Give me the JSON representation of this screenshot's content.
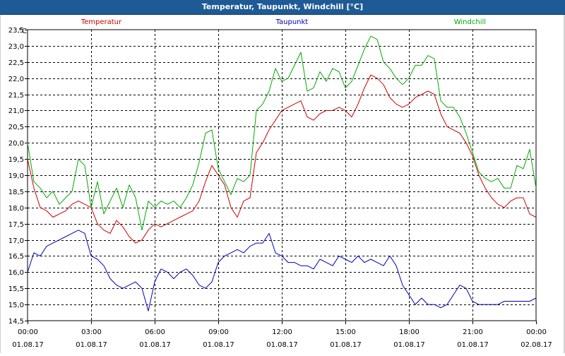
{
  "window": {
    "title": "Temperatur, Taupunkt, Windchill [°C]"
  },
  "chart_data": {
    "type": "line",
    "title": "Temperatur, Taupunkt, Windchill [°C]",
    "ylabel": "°C",
    "ylim": [
      14.5,
      23.5
    ],
    "yticks": [
      14.5,
      15.0,
      15.5,
      16.0,
      16.5,
      17.0,
      17.5,
      18.0,
      18.5,
      19.0,
      19.5,
      20.0,
      20.5,
      21.0,
      21.5,
      22.0,
      22.5,
      23.0,
      23.5
    ],
    "ytick_labels": [
      "14,5",
      "15,0",
      "15,5",
      "16,0",
      "16,5",
      "17,0",
      "17,5",
      "18,0",
      "18,5",
      "19,0",
      "19,5",
      "20,0",
      "20,5",
      "21,0",
      "21,5",
      "22,0",
      "22,5",
      "23,0",
      "23,5"
    ],
    "xlim": [
      0,
      24
    ],
    "xticks": [
      {
        "hour": 0,
        "time": "00:00",
        "date": "01.08.17"
      },
      {
        "hour": 3,
        "time": "03:00",
        "date": "01.08.17"
      },
      {
        "hour": 6,
        "time": "06:00",
        "date": "01.08.17"
      },
      {
        "hour": 9,
        "time": "09:00",
        "date": "01.08.17"
      },
      {
        "hour": 12,
        "time": "12:00",
        "date": "01.08.17"
      },
      {
        "hour": 15,
        "time": "15:00",
        "date": "01.08.17"
      },
      {
        "hour": 18,
        "time": "18:00",
        "date": "01.08.17"
      },
      {
        "hour": 21,
        "time": "21:00",
        "date": "01.08.17"
      },
      {
        "hour": 24,
        "time": "00:00",
        "date": "02.08.17"
      }
    ],
    "grid": true,
    "series": [
      {
        "name": "Temperatur",
        "color": "#cc0000",
        "x": [
          0,
          0.3,
          0.6,
          0.9,
          1.2,
          1.5,
          1.8,
          2.1,
          2.4,
          2.7,
          3.0,
          3.3,
          3.6,
          3.9,
          4.2,
          4.5,
          4.8,
          5.1,
          5.4,
          5.7,
          6.0,
          6.3,
          6.6,
          6.9,
          7.2,
          7.5,
          7.8,
          8.1,
          8.4,
          8.7,
          9.0,
          9.3,
          9.6,
          9.9,
          10.2,
          10.5,
          10.8,
          11.1,
          11.4,
          11.7,
          12.0,
          12.3,
          12.6,
          12.9,
          13.2,
          13.5,
          13.8,
          14.1,
          14.4,
          14.7,
          15.0,
          15.3,
          15.6,
          15.9,
          16.2,
          16.5,
          16.8,
          17.1,
          17.4,
          17.7,
          18.0,
          18.3,
          18.6,
          18.9,
          19.2,
          19.5,
          19.8,
          20.1,
          20.4,
          20.7,
          21.0,
          21.3,
          21.6,
          21.9,
          22.2,
          22.5,
          22.8,
          23.1,
          23.4,
          23.7,
          24.0
        ],
        "values": [
          19.5,
          18.6,
          18.0,
          17.9,
          17.7,
          17.8,
          17.9,
          18.1,
          18.2,
          18.1,
          18.0,
          17.5,
          17.3,
          17.2,
          17.6,
          17.4,
          17.1,
          16.9,
          17.0,
          17.3,
          17.5,
          17.4,
          17.5,
          17.6,
          17.7,
          17.8,
          17.9,
          18.2,
          18.8,
          19.3,
          19.0,
          18.7,
          18.0,
          17.7,
          18.2,
          18.3,
          19.7,
          20.0,
          20.4,
          20.7,
          21.0,
          21.1,
          21.2,
          21.3,
          20.8,
          20.7,
          20.9,
          21.0,
          21.0,
          21.1,
          21.0,
          20.8,
          21.2,
          21.7,
          22.1,
          22.0,
          21.8,
          21.4,
          21.2,
          21.1,
          21.2,
          21.4,
          21.5,
          21.6,
          21.5,
          20.9,
          20.5,
          20.4,
          20.3,
          20.0,
          19.6,
          19.0,
          18.6,
          18.3,
          18.1,
          18.0,
          18.2,
          18.3,
          18.3,
          17.8,
          17.7
        ]
      },
      {
        "name": "Taupunkt",
        "color": "#0000bb",
        "x": [
          0,
          0.3,
          0.6,
          0.9,
          1.2,
          1.5,
          1.8,
          2.1,
          2.4,
          2.7,
          3.0,
          3.3,
          3.6,
          3.9,
          4.2,
          4.5,
          4.8,
          5.1,
          5.4,
          5.7,
          6.0,
          6.3,
          6.6,
          6.9,
          7.2,
          7.5,
          7.8,
          8.1,
          8.4,
          8.7,
          9.0,
          9.3,
          9.6,
          9.9,
          10.2,
          10.5,
          10.8,
          11.1,
          11.4,
          11.7,
          12.0,
          12.3,
          12.6,
          12.9,
          13.2,
          13.5,
          13.8,
          14.1,
          14.4,
          14.7,
          15.0,
          15.3,
          15.6,
          15.9,
          16.2,
          16.5,
          16.8,
          17.1,
          17.4,
          17.7,
          18.0,
          18.3,
          18.6,
          18.9,
          19.2,
          19.5,
          19.8,
          20.1,
          20.4,
          20.7,
          21.0,
          21.3,
          21.6,
          21.9,
          22.2,
          22.5,
          22.8,
          23.1,
          23.4,
          23.7,
          24.0
        ],
        "values": [
          16.0,
          16.6,
          16.5,
          16.8,
          16.9,
          17.0,
          17.1,
          17.2,
          17.3,
          17.2,
          16.5,
          16.4,
          16.2,
          15.8,
          15.6,
          15.5,
          15.6,
          15.7,
          15.5,
          14.8,
          15.7,
          16.1,
          16.0,
          15.8,
          16.0,
          16.1,
          15.9,
          15.6,
          15.5,
          15.7,
          16.3,
          16.5,
          16.6,
          16.7,
          16.6,
          16.8,
          16.9,
          16.9,
          17.2,
          16.6,
          16.5,
          16.3,
          16.3,
          16.2,
          16.2,
          16.1,
          16.4,
          16.3,
          16.2,
          16.5,
          16.4,
          16.3,
          16.5,
          16.3,
          16.4,
          16.3,
          16.2,
          16.5,
          16.2,
          15.6,
          15.3,
          15.0,
          15.2,
          15.0,
          15.0,
          14.9,
          15.0,
          15.3,
          15.6,
          15.5,
          15.1,
          15.0,
          15.0,
          15.0,
          15.0,
          15.1,
          15.1,
          15.1,
          15.1,
          15.1,
          15.2
        ]
      },
      {
        "name": "Windchill",
        "color": "#00aa00",
        "x": [
          0,
          0.3,
          0.6,
          0.9,
          1.2,
          1.5,
          1.8,
          2.1,
          2.4,
          2.7,
          3.0,
          3.3,
          3.6,
          3.9,
          4.2,
          4.5,
          4.8,
          5.1,
          5.4,
          5.7,
          6.0,
          6.3,
          6.6,
          6.9,
          7.2,
          7.5,
          7.8,
          8.1,
          8.4,
          8.7,
          9.0,
          9.3,
          9.6,
          9.9,
          10.2,
          10.5,
          10.8,
          11.1,
          11.4,
          11.7,
          12.0,
          12.3,
          12.6,
          12.9,
          13.2,
          13.5,
          13.8,
          14.1,
          14.4,
          14.7,
          15.0,
          15.3,
          15.6,
          15.9,
          16.2,
          16.5,
          16.8,
          17.1,
          17.4,
          17.7,
          18.0,
          18.3,
          18.6,
          18.9,
          19.2,
          19.5,
          19.8,
          20.1,
          20.4,
          20.7,
          21.0,
          21.3,
          21.6,
          21.9,
          22.2,
          22.5,
          22.8,
          23.1,
          23.4,
          23.7,
          24.0
        ],
        "values": [
          20.0,
          18.8,
          18.6,
          18.3,
          18.5,
          18.1,
          18.3,
          18.5,
          19.5,
          19.3,
          18.0,
          18.8,
          17.8,
          18.2,
          18.6,
          18.0,
          18.7,
          18.3,
          17.3,
          18.2,
          18.0,
          18.2,
          18.1,
          18.2,
          18.0,
          18.3,
          18.7,
          19.4,
          20.3,
          20.4,
          19.2,
          18.8,
          18.4,
          18.9,
          18.8,
          19.0,
          21.0,
          21.2,
          21.6,
          22.3,
          21.9,
          22.0,
          22.4,
          22.8,
          21.6,
          21.7,
          22.2,
          21.9,
          22.3,
          22.2,
          21.7,
          21.9,
          22.4,
          22.9,
          23.3,
          23.2,
          22.5,
          22.3,
          22.0,
          21.8,
          22.0,
          22.4,
          22.4,
          22.7,
          22.6,
          21.3,
          21.1,
          21.1,
          20.8,
          20.3,
          19.7,
          19.1,
          18.9,
          18.8,
          18.9,
          18.6,
          18.6,
          19.3,
          19.2,
          19.8,
          18.6
        ]
      }
    ]
  }
}
